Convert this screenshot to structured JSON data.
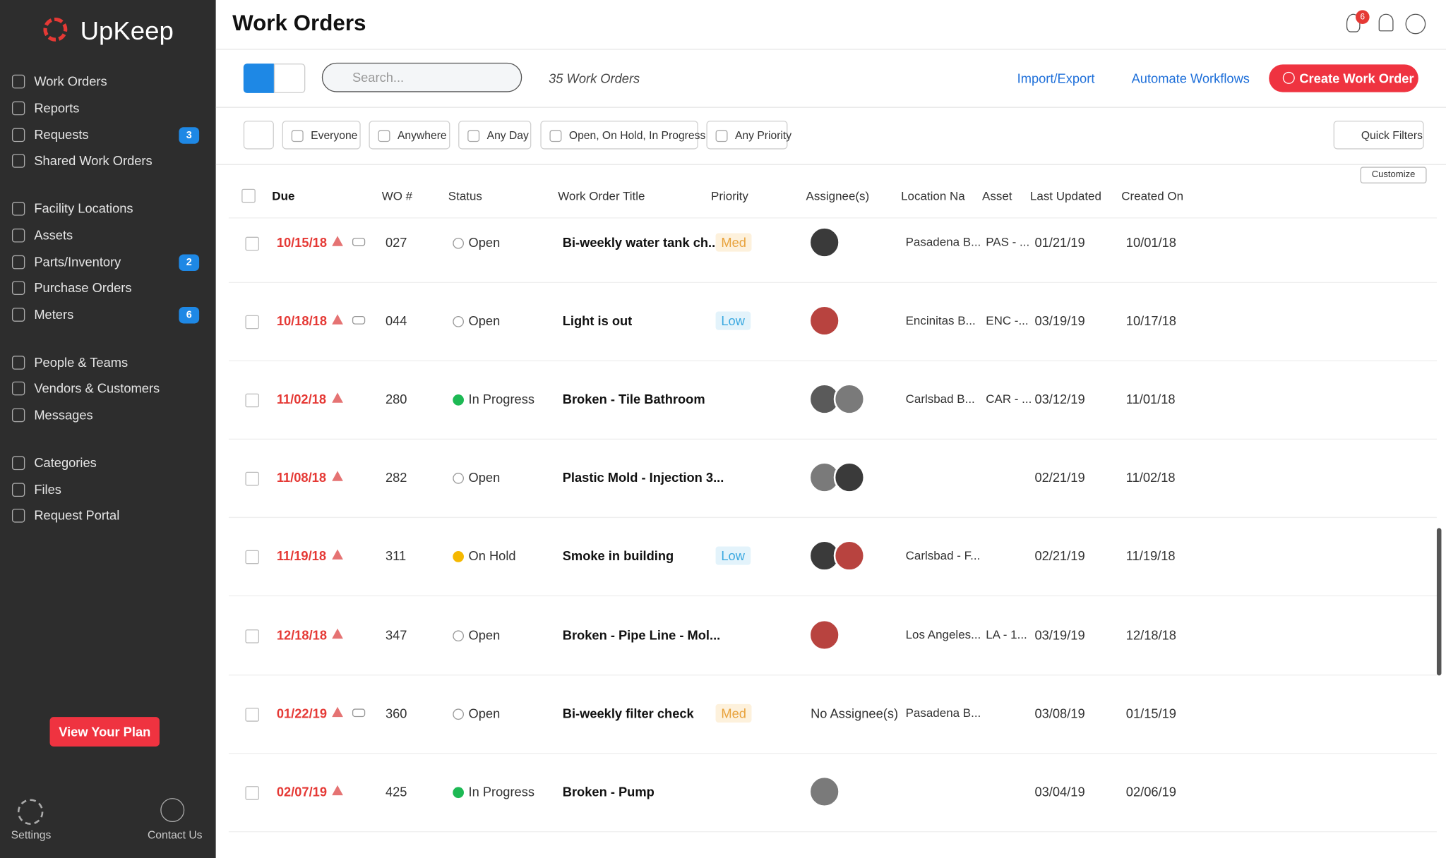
{
  "sidebar": {
    "brand": "UpKeep",
    "groups": [
      [
        {
          "label": "Work Orders"
        },
        {
          "label": "Reports"
        },
        {
          "label": "Requests",
          "badge": 3
        },
        {
          "label": "Shared Work Orders"
        }
      ],
      [
        {
          "label": "Facility Locations"
        },
        {
          "label": "Assets"
        },
        {
          "label": "Parts/Inventory",
          "badge": 2
        },
        {
          "label": "Purchase Orders"
        },
        {
          "label": "Meters",
          "badge": 6
        }
      ],
      [
        {
          "label": "People & Teams"
        },
        {
          "label": "Vendors & Customers"
        },
        {
          "label": "Messages"
        }
      ],
      [
        {
          "label": "Categories"
        },
        {
          "label": "Files"
        },
        {
          "label": "Request Portal"
        }
      ]
    ],
    "plan_button": "View Your Plan",
    "settings": "Settings",
    "contact": "Contact Us"
  },
  "header": {
    "title": "Work Orders",
    "notification_count": 6
  },
  "toolbar": {
    "search_placeholder": "Search...",
    "count": "35 Work Orders",
    "import_export": "Import/Export",
    "automate": "Automate Workflows",
    "create": "Create Work Order"
  },
  "filters": [
    "Everyone",
    "Anywhere",
    "Any Day",
    "Open, On Hold, In Progress",
    "Any Priority"
  ],
  "quick_filters": "Quick Filters",
  "customize": "Customize",
  "table": {
    "columns": [
      "Due",
      "WO #",
      "Status",
      "Work Order Title",
      "Priority",
      "Assignee(s)",
      "Location Na",
      "Asset",
      "Last Updated",
      "Created On"
    ],
    "rows": [
      {
        "due": "10/15/18",
        "recurring": true,
        "wo": "027",
        "status": "Open",
        "title": "Bi-weekly water tank ch...",
        "priority": "Med",
        "avatars": 1,
        "location": "Pasadena B...",
        "asset": "PAS - ...",
        "updated": "01/21/19",
        "created": "10/01/18"
      },
      {
        "due": "10/18/18",
        "recurring": true,
        "wo": "044",
        "status": "Open",
        "title": "Light is out",
        "priority": "Low",
        "avatars": 1,
        "location": "Encinitas B...",
        "asset": "ENC -...",
        "updated": "03/19/19",
        "created": "10/17/18"
      },
      {
        "due": "11/02/18",
        "recurring": false,
        "wo": "280",
        "status": "In Progress",
        "title": "Broken - Tile Bathroom",
        "avatars": 2,
        "location": "Carlsbad B...",
        "asset": "CAR - ...",
        "updated": "03/12/19",
        "created": "11/01/18"
      },
      {
        "due": "11/08/18",
        "recurring": false,
        "wo": "282",
        "status": "Open",
        "title": "Plastic Mold - Injection 3...",
        "avatars": 2,
        "updated": "02/21/19",
        "created": "11/02/18"
      },
      {
        "due": "11/19/18",
        "recurring": false,
        "wo": "311",
        "status": "On Hold",
        "title": "Smoke in building",
        "priority": "Low",
        "avatars": 2,
        "location": "Carlsbad - F...",
        "updated": "02/21/19",
        "created": "11/19/18"
      },
      {
        "due": "12/18/18",
        "recurring": false,
        "wo": "347",
        "status": "Open",
        "title": "Broken - Pipe Line - Mol...",
        "avatars": 1,
        "location": "Los Angeles...",
        "asset": "LA - 1...",
        "updated": "03/19/19",
        "created": "12/18/18"
      },
      {
        "due": "01/22/19",
        "recurring": true,
        "wo": "360",
        "status": "Open",
        "title": "Bi-weekly filter check",
        "priority": "Med",
        "assignee_text": "No Assignee(s)",
        "location": "Pasadena B...",
        "updated": "03/08/19",
        "created": "01/15/19"
      },
      {
        "due": "02/07/19",
        "recurring": false,
        "wo": "425",
        "status": "In Progress",
        "title": "Broken - Pump",
        "avatars": 1,
        "updated": "03/04/19",
        "created": "02/06/19"
      }
    ]
  }
}
